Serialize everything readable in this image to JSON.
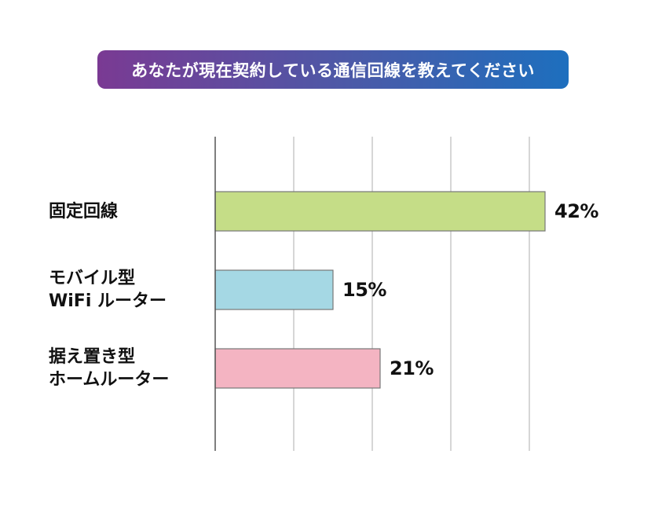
{
  "chart_data": {
    "type": "bar",
    "orientation": "horizontal",
    "title": "あなたが現在契約している通信回線を教えてください",
    "categories": [
      "固定回線",
      "モバイル型\nWiFi ルーター",
      "据え置き型\nホームルーター"
    ],
    "values": [
      42,
      15,
      21
    ],
    "value_labels": [
      "42%",
      "15%",
      "21%"
    ],
    "colors": [
      "#c5dd87",
      "#a5d8e4",
      "#f4b4c2"
    ],
    "xlim": [
      0,
      40
    ],
    "grid": true,
    "legend": "none"
  },
  "colors": {
    "title_gradient_start": "#7a3a93",
    "title_gradient_end": "#1d6fbe",
    "bar_stroke": "#777777",
    "grid": "#c8c8c8",
    "axis": "#555555"
  }
}
